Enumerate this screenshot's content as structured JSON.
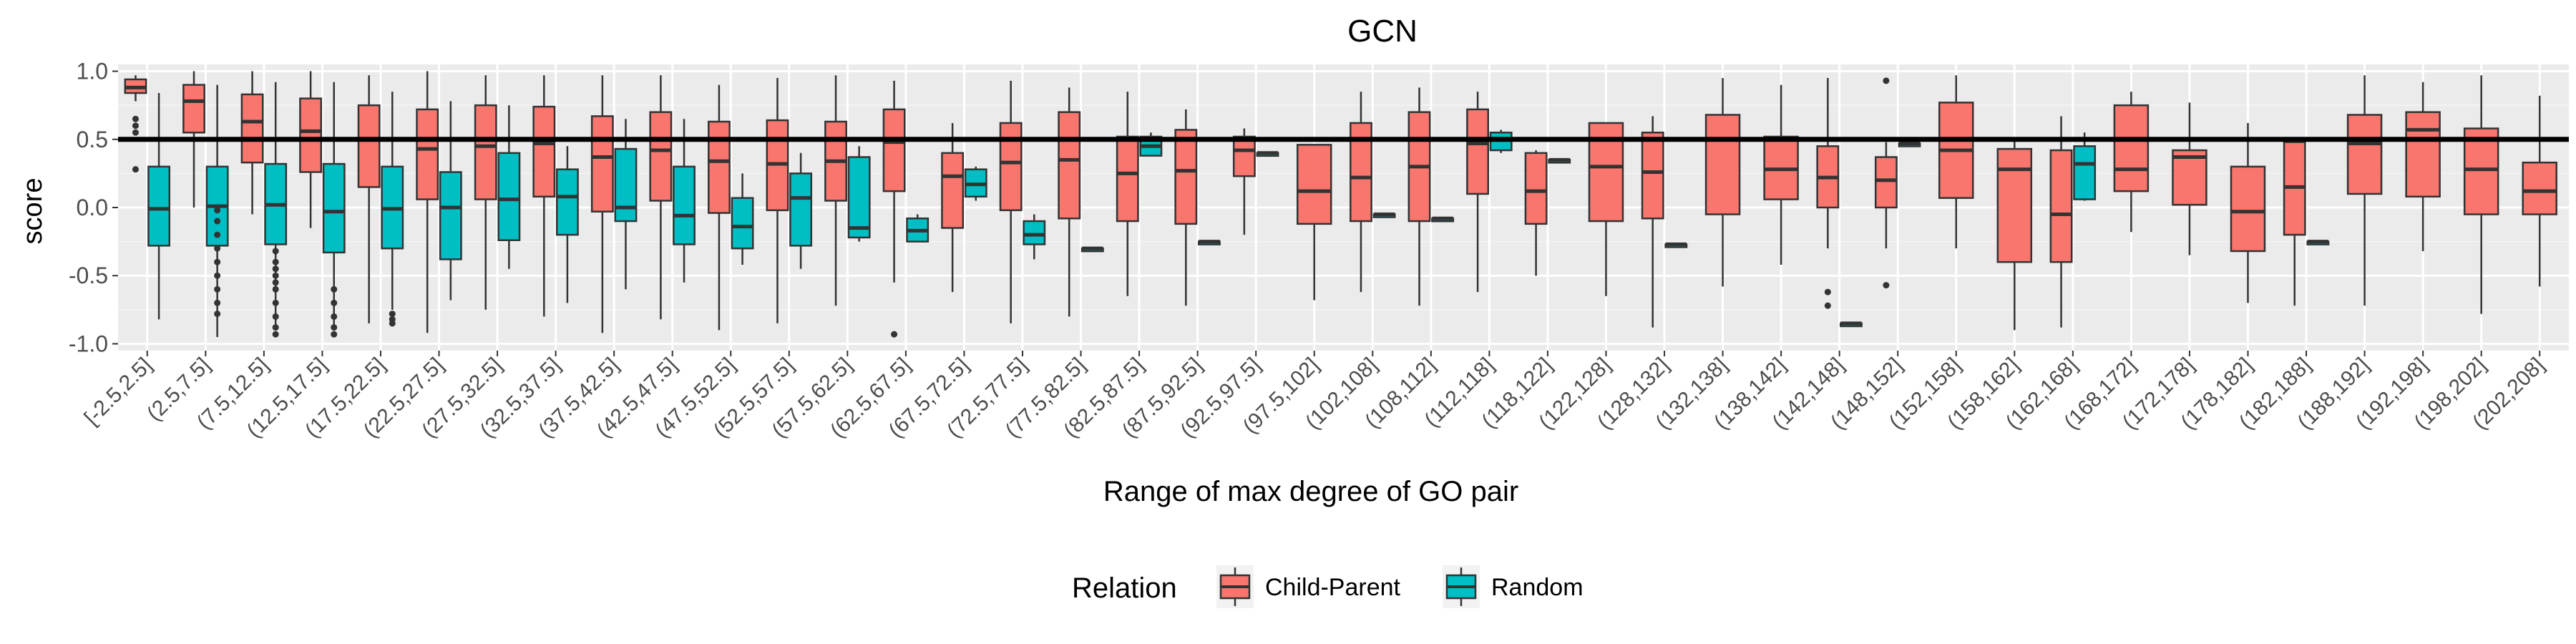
{
  "chart_data": {
    "type": "boxplot",
    "title": "GCN",
    "xlabel": "Range of max degree of GO pair",
    "ylabel": "score",
    "ylim": [
      -1.05,
      1.05
    ],
    "yticks": [
      -1.0,
      -0.5,
      0.0,
      0.5,
      1.0
    ],
    "ytick_labels": [
      "-1.0",
      "-0.5",
      "0.0",
      "0.5",
      "1.0"
    ],
    "reference_line_y": 0.5,
    "grid": true,
    "legend": {
      "title": "Relation",
      "placement": "bottom",
      "entries": [
        {
          "label": "Child-Parent",
          "color": "#F8766D"
        },
        {
          "label": "Random",
          "color": "#00BFC4"
        }
      ]
    },
    "categories": [
      "[-2.5,2.5]",
      "(2.5,7.5]",
      "(7.5,12.5]",
      "(12.5,17.5]",
      "(17.5,22.5]",
      "(22.5,27.5]",
      "(27.5,32.5]",
      "(32.5,37.5]",
      "(37.5,42.5]",
      "(42.5,47.5]",
      "(47.5,52.5]",
      "(52.5,57.5]",
      "(57.5,62.5]",
      "(62.5,67.5]",
      "(67.5,72.5]",
      "(72.5,77.5]",
      "(77.5,82.5]",
      "(82.5,87.5]",
      "(87.5,92.5]",
      "(92.5,97.5]",
      "(97.5,102]",
      "(102,108]",
      "(108,112]",
      "(112,118]",
      "(118,122]",
      "(122,128]",
      "(128,132]",
      "(132,138]",
      "(138,142]",
      "(142,148]",
      "(148,152]",
      "(152,158]",
      "(158,162]",
      "(162,168]",
      "(168,172]",
      "(172,178]",
      "(178,182]",
      "(182,188]",
      "(188,192]",
      "(192,198]",
      "(198,202]",
      "(202,208]"
    ],
    "series": [
      {
        "name": "Child-Parent",
        "color": "#F8766D",
        "boxes": [
          {
            "lo": 0.78,
            "q1": 0.84,
            "med": 0.88,
            "q3": 0.94,
            "hi": 0.97,
            "outliers": [
              0.65,
              0.6,
              0.55,
              0.28
            ]
          },
          {
            "lo": 0.0,
            "q1": 0.55,
            "med": 0.78,
            "q3": 0.9,
            "hi": 1.0,
            "outliers": []
          },
          {
            "lo": -0.05,
            "q1": 0.33,
            "med": 0.63,
            "q3": 0.83,
            "hi": 1.0,
            "outliers": []
          },
          {
            "lo": -0.15,
            "q1": 0.26,
            "med": 0.56,
            "q3": 0.8,
            "hi": 1.0,
            "outliers": []
          },
          {
            "lo": -0.85,
            "q1": 0.15,
            "med": 0.5,
            "q3": 0.75,
            "hi": 0.97,
            "outliers": []
          },
          {
            "lo": -0.92,
            "q1": 0.06,
            "med": 0.43,
            "q3": 0.72,
            "hi": 1.0,
            "outliers": []
          },
          {
            "lo": -0.75,
            "q1": 0.06,
            "med": 0.45,
            "q3": 0.75,
            "hi": 0.97,
            "outliers": []
          },
          {
            "lo": -0.8,
            "q1": 0.08,
            "med": 0.47,
            "q3": 0.74,
            "hi": 0.97,
            "outliers": []
          },
          {
            "lo": -0.92,
            "q1": -0.03,
            "med": 0.37,
            "q3": 0.67,
            "hi": 0.97,
            "outliers": []
          },
          {
            "lo": -0.82,
            "q1": 0.05,
            "med": 0.42,
            "q3": 0.7,
            "hi": 0.97,
            "outliers": []
          },
          {
            "lo": -0.9,
            "q1": -0.04,
            "med": 0.34,
            "q3": 0.63,
            "hi": 0.9,
            "outliers": []
          },
          {
            "lo": -0.85,
            "q1": -0.02,
            "med": 0.32,
            "q3": 0.64,
            "hi": 0.95,
            "outliers": []
          },
          {
            "lo": -0.72,
            "q1": 0.05,
            "med": 0.34,
            "q3": 0.63,
            "hi": 0.97,
            "outliers": []
          },
          {
            "lo": -0.55,
            "q1": 0.12,
            "med": 0.48,
            "q3": 0.72,
            "hi": 0.93,
            "outliers": [
              -0.93
            ]
          },
          {
            "lo": -0.62,
            "q1": -0.15,
            "med": 0.23,
            "q3": 0.4,
            "hi": 0.62,
            "outliers": []
          },
          {
            "lo": -0.85,
            "q1": -0.02,
            "med": 0.33,
            "q3": 0.62,
            "hi": 0.93,
            "outliers": []
          },
          {
            "lo": -0.8,
            "q1": -0.08,
            "med": 0.35,
            "q3": 0.7,
            "hi": 0.88,
            "outliers": []
          },
          {
            "lo": -0.65,
            "q1": -0.1,
            "med": 0.25,
            "q3": 0.52,
            "hi": 0.85,
            "outliers": []
          },
          {
            "lo": -0.72,
            "q1": -0.12,
            "med": 0.27,
            "q3": 0.57,
            "hi": 0.72,
            "outliers": []
          },
          {
            "lo": -0.2,
            "q1": 0.23,
            "med": 0.42,
            "q3": 0.52,
            "hi": 0.58,
            "outliers": []
          },
          {
            "lo": -0.68,
            "q1": -0.12,
            "med": 0.12,
            "q3": 0.46,
            "hi": 0.46,
            "outliers": []
          },
          {
            "lo": -0.62,
            "q1": -0.1,
            "med": 0.22,
            "q3": 0.62,
            "hi": 0.85,
            "outliers": []
          },
          {
            "lo": -0.72,
            "q1": -0.1,
            "med": 0.3,
            "q3": 0.7,
            "hi": 0.88,
            "outliers": []
          },
          {
            "lo": -0.62,
            "q1": 0.1,
            "med": 0.47,
            "q3": 0.72,
            "hi": 0.85,
            "outliers": []
          },
          {
            "lo": -0.5,
            "q1": -0.12,
            "med": 0.12,
            "q3": 0.4,
            "hi": 0.42,
            "outliers": []
          },
          {
            "lo": -0.65,
            "q1": -0.1,
            "med": 0.3,
            "q3": 0.62,
            "hi": 0.62,
            "outliers": []
          },
          {
            "lo": -0.88,
            "q1": -0.08,
            "med": 0.26,
            "q3": 0.55,
            "hi": 0.67,
            "outliers": []
          },
          {
            "lo": -0.58,
            "q1": -0.05,
            "med": 0.5,
            "q3": 0.68,
            "hi": 0.95,
            "outliers": []
          },
          {
            "lo": -0.42,
            "q1": 0.06,
            "med": 0.28,
            "q3": 0.52,
            "hi": 0.9,
            "outliers": []
          },
          {
            "lo": -0.3,
            "q1": 0.0,
            "med": 0.22,
            "q3": 0.45,
            "hi": 0.95,
            "outliers": [
              -0.62,
              -0.72
            ]
          },
          {
            "lo": -0.3,
            "q1": 0.0,
            "med": 0.2,
            "q3": 0.37,
            "hi": 0.48,
            "outliers": [
              0.93,
              -0.57
            ]
          },
          {
            "lo": -0.3,
            "q1": 0.07,
            "med": 0.42,
            "q3": 0.77,
            "hi": 0.97,
            "outliers": []
          },
          {
            "lo": -0.9,
            "q1": -0.4,
            "med": 0.28,
            "q3": 0.43,
            "hi": 0.5,
            "outliers": []
          },
          {
            "lo": -0.88,
            "q1": -0.4,
            "med": -0.05,
            "q3": 0.42,
            "hi": 0.67,
            "outliers": []
          },
          {
            "lo": -0.18,
            "q1": 0.12,
            "med": 0.28,
            "q3": 0.75,
            "hi": 0.85,
            "outliers": []
          },
          {
            "lo": -0.35,
            "q1": 0.02,
            "med": 0.37,
            "q3": 0.42,
            "hi": 0.77,
            "outliers": []
          },
          {
            "lo": -0.7,
            "q1": -0.32,
            "med": -0.03,
            "q3": 0.3,
            "hi": 0.62,
            "outliers": []
          },
          {
            "lo": -0.72,
            "q1": -0.2,
            "med": 0.15,
            "q3": 0.48,
            "hi": 0.5,
            "outliers": []
          },
          {
            "lo": -0.72,
            "q1": 0.1,
            "med": 0.47,
            "q3": 0.68,
            "hi": 0.97,
            "outliers": []
          },
          {
            "lo": -0.32,
            "q1": 0.08,
            "med": 0.57,
            "q3": 0.7,
            "hi": 0.92,
            "outliers": []
          },
          {
            "lo": -0.78,
            "q1": -0.05,
            "med": 0.28,
            "q3": 0.58,
            "hi": 0.97,
            "outliers": []
          },
          {
            "lo": -0.58,
            "q1": -0.05,
            "med": 0.12,
            "q3": 0.33,
            "hi": 0.82,
            "outliers": []
          }
        ]
      },
      {
        "name": "Random",
        "color": "#00BFC4",
        "boxes": [
          {
            "lo": -0.82,
            "q1": -0.28,
            "med": -0.01,
            "q3": 0.3,
            "hi": 0.84,
            "outliers": []
          },
          {
            "lo": -0.95,
            "q1": -0.28,
            "med": 0.01,
            "q3": 0.3,
            "hi": 0.9,
            "outliers": [
              -0.02,
              -0.1,
              -0.2,
              -0.3,
              -0.4,
              -0.5,
              -0.6,
              -0.7,
              -0.78
            ]
          },
          {
            "lo": -0.9,
            "q1": -0.27,
            "med": 0.02,
            "q3": 0.32,
            "hi": 0.92,
            "outliers": [
              -0.32,
              -0.4,
              -0.45,
              -0.5,
              -0.55,
              -0.6,
              -0.7,
              -0.8,
              -0.88,
              -0.93
            ]
          },
          {
            "lo": -0.9,
            "q1": -0.33,
            "med": -0.03,
            "q3": 0.32,
            "hi": 0.92,
            "outliers": [
              -0.6,
              -0.7,
              -0.8,
              -0.88,
              -0.93
            ]
          },
          {
            "lo": -0.75,
            "q1": -0.3,
            "med": -0.01,
            "q3": 0.3,
            "hi": 0.85,
            "outliers": [
              -0.78,
              -0.82,
              -0.85
            ]
          },
          {
            "lo": -0.68,
            "q1": -0.38,
            "med": 0.0,
            "q3": 0.26,
            "hi": 0.78,
            "outliers": []
          },
          {
            "lo": -0.45,
            "q1": -0.24,
            "med": 0.06,
            "q3": 0.4,
            "hi": 0.75,
            "outliers": []
          },
          {
            "lo": -0.7,
            "q1": -0.2,
            "med": 0.08,
            "q3": 0.28,
            "hi": 0.45,
            "outliers": []
          },
          {
            "lo": -0.6,
            "q1": -0.1,
            "med": 0.0,
            "q3": 0.43,
            "hi": 0.65,
            "outliers": []
          },
          {
            "lo": -0.55,
            "q1": -0.27,
            "med": -0.06,
            "q3": 0.3,
            "hi": 0.65,
            "outliers": []
          },
          {
            "lo": -0.42,
            "q1": -0.3,
            "med": -0.14,
            "q3": 0.07,
            "hi": 0.25,
            "outliers": []
          },
          {
            "lo": -0.45,
            "q1": -0.28,
            "med": 0.07,
            "q3": 0.25,
            "hi": 0.4,
            "outliers": []
          },
          {
            "lo": -0.25,
            "q1": -0.22,
            "med": -0.15,
            "q3": 0.37,
            "hi": 0.45,
            "outliers": []
          },
          {
            "lo": -0.25,
            "q1": -0.25,
            "med": -0.17,
            "q3": -0.08,
            "hi": -0.05,
            "outliers": []
          },
          {
            "lo": 0.05,
            "q1": 0.08,
            "med": 0.17,
            "q3": 0.28,
            "hi": 0.3,
            "outliers": []
          },
          {
            "lo": -0.38,
            "q1": -0.27,
            "med": -0.2,
            "q3": -0.1,
            "hi": -0.05,
            "outliers": []
          },
          {
            "lo": -0.3,
            "q1": -0.3,
            "med": -0.3,
            "q3": -0.3,
            "hi": -0.3,
            "outliers": []
          },
          {
            "lo": 0.38,
            "q1": 0.38,
            "med": 0.45,
            "q3": 0.52,
            "hi": 0.55,
            "outliers": []
          },
          {
            "lo": -0.25,
            "q1": -0.25,
            "med": -0.25,
            "q3": -0.25,
            "hi": -0.25,
            "outliers": []
          },
          {
            "lo": 0.4,
            "q1": 0.4,
            "med": 0.4,
            "q3": 0.4,
            "hi": 0.4,
            "outliers": []
          },
          null,
          {
            "lo": -0.05,
            "q1": -0.05,
            "med": -0.05,
            "q3": -0.05,
            "hi": -0.05,
            "outliers": []
          },
          {
            "lo": -0.08,
            "q1": -0.08,
            "med": -0.08,
            "q3": -0.08,
            "hi": -0.08,
            "outliers": []
          },
          {
            "lo": 0.4,
            "q1": 0.42,
            "med": 0.5,
            "q3": 0.55,
            "hi": 0.57,
            "outliers": []
          },
          {
            "lo": 0.35,
            "q1": 0.35,
            "med": 0.35,
            "q3": 0.35,
            "hi": 0.35,
            "outliers": []
          },
          null,
          {
            "lo": -0.27,
            "q1": -0.27,
            "med": -0.27,
            "q3": -0.27,
            "hi": -0.27,
            "outliers": []
          },
          null,
          null,
          {
            "lo": -0.85,
            "q1": -0.85,
            "med": -0.85,
            "q3": -0.85,
            "hi": -0.85,
            "outliers": []
          },
          {
            "lo": 0.47,
            "q1": 0.47,
            "med": 0.47,
            "q3": 0.47,
            "hi": 0.47,
            "outliers": []
          },
          null,
          null,
          {
            "lo": 0.05,
            "q1": 0.06,
            "med": 0.32,
            "q3": 0.45,
            "hi": 0.55,
            "outliers": []
          },
          null,
          null,
          null,
          {
            "lo": -0.25,
            "q1": -0.25,
            "med": -0.25,
            "q3": -0.25,
            "hi": -0.25,
            "outliers": []
          },
          null,
          null,
          null,
          null
        ]
      }
    ]
  }
}
